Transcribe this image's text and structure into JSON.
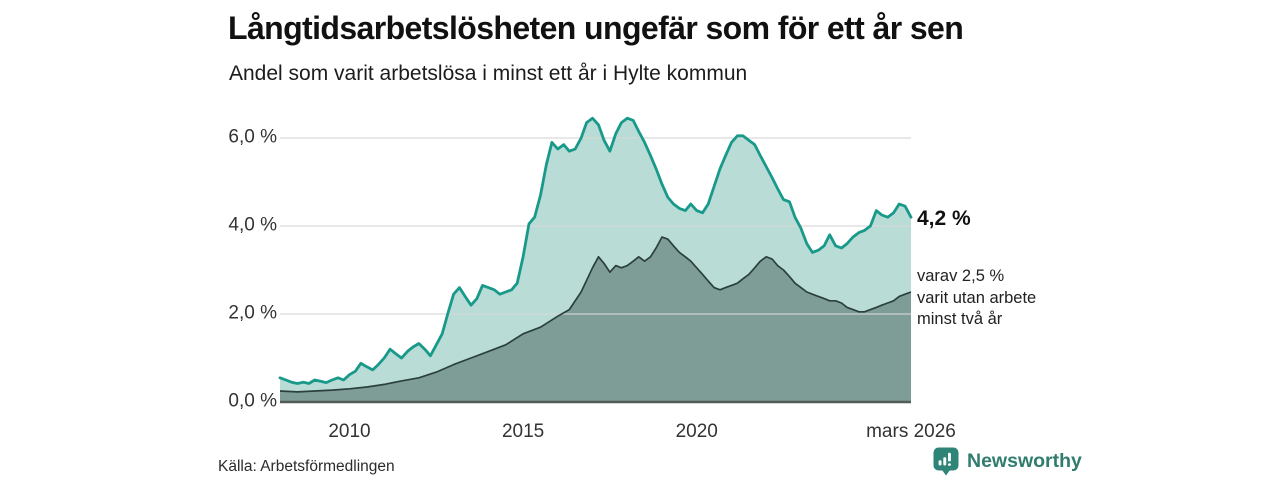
{
  "title": "Långtidsarbetslösheten ungefär som för ett år sen",
  "subtitle": "Andel som varit arbetslösa i minst ett år i Hylte kommun",
  "source": "Källa: Arbetsförmedlingen",
  "logo": {
    "name": "Newsworthy"
  },
  "annotations": {
    "latest_value": "4,2 %",
    "secondary_lines": [
      "varav 2,5 %",
      "varit utan arbete",
      "minst två år"
    ]
  },
  "colors": {
    "primary_line": "#18998a",
    "primary_fill": "#b9dcd6",
    "secondary_line": "#2b403c",
    "secondary_fill": "#7f9d97",
    "gridline": "#d8d8d8",
    "baseline": "#515c59",
    "logo_teal": "#2e8577",
    "logo_text": "#307d70"
  },
  "chart_data": {
    "type": "area",
    "title": "Långtidsarbetslösheten ungefär som för ett år sen",
    "subtitle": "Andel som varit arbetslösa i minst ett år i Hylte kommun",
    "unit": "%",
    "grid": true,
    "x_axis": {
      "range": [
        2008.0,
        2026.17
      ],
      "ticks": [
        {
          "label": "2010",
          "year": 2010
        },
        {
          "label": "2015",
          "year": 2015
        },
        {
          "label": "2020",
          "year": 2020
        },
        {
          "label": "mars 2026",
          "year": 2026.17
        }
      ]
    },
    "y_axis": {
      "range": [
        0,
        6
      ],
      "ticks": [
        {
          "label": "0,0 %",
          "value": 0
        },
        {
          "label": "2,0 %",
          "value": 2
        },
        {
          "label": "4,0 %",
          "value": 4
        },
        {
          "label": "6,0 %",
          "value": 6
        }
      ]
    },
    "series": [
      {
        "name": "Andel arbetslösa minst ett år",
        "end_label": "4,2 %",
        "end_value": 4.2,
        "points": [
          [
            2008.0,
            0.55
          ],
          [
            2008.17,
            0.5
          ],
          [
            2008.33,
            0.45
          ],
          [
            2008.5,
            0.42
          ],
          [
            2008.67,
            0.45
          ],
          [
            2008.83,
            0.42
          ],
          [
            2009.0,
            0.5
          ],
          [
            2009.17,
            0.47
          ],
          [
            2009.33,
            0.44
          ],
          [
            2009.5,
            0.5
          ],
          [
            2009.67,
            0.55
          ],
          [
            2009.83,
            0.5
          ],
          [
            2010.0,
            0.62
          ],
          [
            2010.17,
            0.7
          ],
          [
            2010.33,
            0.88
          ],
          [
            2010.5,
            0.8
          ],
          [
            2010.67,
            0.73
          ],
          [
            2010.83,
            0.85
          ],
          [
            2011.0,
            1.0
          ],
          [
            2011.17,
            1.2
          ],
          [
            2011.33,
            1.1
          ],
          [
            2011.5,
            1.0
          ],
          [
            2011.67,
            1.15
          ],
          [
            2011.83,
            1.25
          ],
          [
            2012.0,
            1.33
          ],
          [
            2012.17,
            1.2
          ],
          [
            2012.33,
            1.05
          ],
          [
            2012.5,
            1.3
          ],
          [
            2012.67,
            1.55
          ],
          [
            2012.83,
            2.0
          ],
          [
            2013.0,
            2.45
          ],
          [
            2013.17,
            2.6
          ],
          [
            2013.33,
            2.4
          ],
          [
            2013.5,
            2.2
          ],
          [
            2013.67,
            2.35
          ],
          [
            2013.83,
            2.65
          ],
          [
            2014.0,
            2.6
          ],
          [
            2014.17,
            2.55
          ],
          [
            2014.33,
            2.45
          ],
          [
            2014.5,
            2.5
          ],
          [
            2014.67,
            2.55
          ],
          [
            2014.83,
            2.7
          ],
          [
            2015.0,
            3.3
          ],
          [
            2015.17,
            4.05
          ],
          [
            2015.33,
            4.2
          ],
          [
            2015.5,
            4.7
          ],
          [
            2015.67,
            5.4
          ],
          [
            2015.83,
            5.9
          ],
          [
            2016.0,
            5.75
          ],
          [
            2016.17,
            5.85
          ],
          [
            2016.33,
            5.7
          ],
          [
            2016.5,
            5.75
          ],
          [
            2016.67,
            6.0
          ],
          [
            2016.83,
            6.35
          ],
          [
            2017.0,
            6.45
          ],
          [
            2017.17,
            6.3
          ],
          [
            2017.33,
            5.95
          ],
          [
            2017.5,
            5.7
          ],
          [
            2017.67,
            6.1
          ],
          [
            2017.83,
            6.35
          ],
          [
            2018.0,
            6.45
          ],
          [
            2018.17,
            6.4
          ],
          [
            2018.33,
            6.15
          ],
          [
            2018.5,
            5.9
          ],
          [
            2018.67,
            5.6
          ],
          [
            2018.83,
            5.3
          ],
          [
            2019.0,
            4.95
          ],
          [
            2019.17,
            4.65
          ],
          [
            2019.33,
            4.5
          ],
          [
            2019.5,
            4.4
          ],
          [
            2019.67,
            4.35
          ],
          [
            2019.83,
            4.5
          ],
          [
            2020.0,
            4.35
          ],
          [
            2020.17,
            4.3
          ],
          [
            2020.33,
            4.5
          ],
          [
            2020.5,
            4.9
          ],
          [
            2020.67,
            5.3
          ],
          [
            2020.83,
            5.6
          ],
          [
            2021.0,
            5.9
          ],
          [
            2021.17,
            6.05
          ],
          [
            2021.33,
            6.05
          ],
          [
            2021.5,
            5.95
          ],
          [
            2021.67,
            5.85
          ],
          [
            2021.83,
            5.6
          ],
          [
            2022.0,
            5.35
          ],
          [
            2022.17,
            5.1
          ],
          [
            2022.33,
            4.85
          ],
          [
            2022.5,
            4.6
          ],
          [
            2022.67,
            4.55
          ],
          [
            2022.83,
            4.2
          ],
          [
            2023.0,
            3.95
          ],
          [
            2023.17,
            3.6
          ],
          [
            2023.33,
            3.4
          ],
          [
            2023.5,
            3.45
          ],
          [
            2023.67,
            3.55
          ],
          [
            2023.83,
            3.8
          ],
          [
            2024.0,
            3.55
          ],
          [
            2024.17,
            3.5
          ],
          [
            2024.33,
            3.6
          ],
          [
            2024.5,
            3.75
          ],
          [
            2024.67,
            3.85
          ],
          [
            2024.83,
            3.9
          ],
          [
            2025.0,
            4.0
          ],
          [
            2025.17,
            4.35
          ],
          [
            2025.33,
            4.25
          ],
          [
            2025.5,
            4.2
          ],
          [
            2025.67,
            4.3
          ],
          [
            2025.83,
            4.5
          ],
          [
            2026.0,
            4.45
          ],
          [
            2026.17,
            4.2
          ]
        ]
      },
      {
        "name": "Varav utan arbete minst två år",
        "end_label": "2,5 %",
        "end_value": 2.5,
        "points": [
          [
            2008.0,
            0.25
          ],
          [
            2008.5,
            0.23
          ],
          [
            2009.0,
            0.25
          ],
          [
            2009.5,
            0.27
          ],
          [
            2010.0,
            0.3
          ],
          [
            2010.5,
            0.34
          ],
          [
            2011.0,
            0.4
          ],
          [
            2011.5,
            0.48
          ],
          [
            2012.0,
            0.55
          ],
          [
            2012.5,
            0.68
          ],
          [
            2013.0,
            0.85
          ],
          [
            2013.5,
            1.0
          ],
          [
            2014.0,
            1.15
          ],
          [
            2014.5,
            1.3
          ],
          [
            2015.0,
            1.55
          ],
          [
            2015.5,
            1.7
          ],
          [
            2016.0,
            1.95
          ],
          [
            2016.33,
            2.1
          ],
          [
            2016.67,
            2.5
          ],
          [
            2017.0,
            3.05
          ],
          [
            2017.17,
            3.3
          ],
          [
            2017.33,
            3.15
          ],
          [
            2017.5,
            2.95
          ],
          [
            2017.67,
            3.1
          ],
          [
            2017.83,
            3.05
          ],
          [
            2018.0,
            3.1
          ],
          [
            2018.17,
            3.2
          ],
          [
            2018.33,
            3.3
          ],
          [
            2018.5,
            3.2
          ],
          [
            2018.67,
            3.3
          ],
          [
            2018.83,
            3.5
          ],
          [
            2019.0,
            3.75
          ],
          [
            2019.17,
            3.7
          ],
          [
            2019.33,
            3.55
          ],
          [
            2019.5,
            3.4
          ],
          [
            2019.67,
            3.3
          ],
          [
            2019.83,
            3.2
          ],
          [
            2020.0,
            3.05
          ],
          [
            2020.17,
            2.9
          ],
          [
            2020.33,
            2.75
          ],
          [
            2020.5,
            2.6
          ],
          [
            2020.67,
            2.55
          ],
          [
            2020.83,
            2.6
          ],
          [
            2021.0,
            2.65
          ],
          [
            2021.17,
            2.7
          ],
          [
            2021.33,
            2.8
          ],
          [
            2021.5,
            2.9
          ],
          [
            2021.67,
            3.05
          ],
          [
            2021.83,
            3.2
          ],
          [
            2022.0,
            3.3
          ],
          [
            2022.17,
            3.25
          ],
          [
            2022.33,
            3.1
          ],
          [
            2022.5,
            3.0
          ],
          [
            2022.67,
            2.85
          ],
          [
            2022.83,
            2.7
          ],
          [
            2023.0,
            2.6
          ],
          [
            2023.17,
            2.5
          ],
          [
            2023.33,
            2.45
          ],
          [
            2023.5,
            2.4
          ],
          [
            2023.67,
            2.35
          ],
          [
            2023.83,
            2.3
          ],
          [
            2024.0,
            2.3
          ],
          [
            2024.17,
            2.25
          ],
          [
            2024.33,
            2.15
          ],
          [
            2024.5,
            2.1
          ],
          [
            2024.67,
            2.05
          ],
          [
            2024.83,
            2.05
          ],
          [
            2025.0,
            2.1
          ],
          [
            2025.17,
            2.15
          ],
          [
            2025.33,
            2.2
          ],
          [
            2025.5,
            2.25
          ],
          [
            2025.67,
            2.3
          ],
          [
            2025.83,
            2.4
          ],
          [
            2026.0,
            2.45
          ],
          [
            2026.17,
            2.5
          ]
        ]
      }
    ]
  }
}
